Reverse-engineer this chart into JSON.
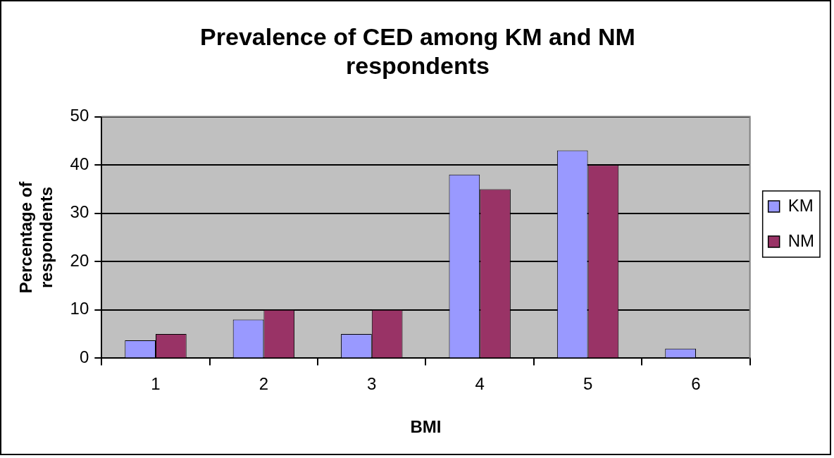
{
  "chart_data": {
    "type": "bar",
    "title": [
      "Prevalence of CED among KM and NM",
      "respondents"
    ],
    "xlabel": "BMI",
    "ylabel": [
      "Percentage of",
      "respondents"
    ],
    "categories": [
      "1",
      "2",
      "3",
      "4",
      "5",
      "6"
    ],
    "series": [
      {
        "name": "KM",
        "color": "#9999ff",
        "values": [
          3.7,
          8,
          5,
          38,
          43,
          2
        ]
      },
      {
        "name": "NM",
        "color": "#993366",
        "values": [
          5,
          10,
          10,
          35,
          40,
          null
        ]
      }
    ],
    "ylim": [
      0,
      50
    ],
    "yticks": [
      0,
      10,
      20,
      30,
      40,
      50
    ],
    "grid": "y",
    "legend": "right"
  }
}
